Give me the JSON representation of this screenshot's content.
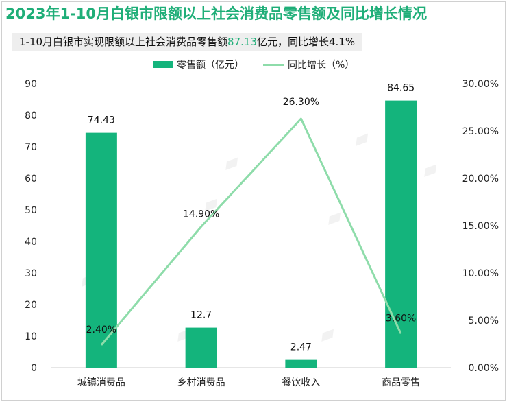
{
  "header": {
    "title": "2023年1-10月白银市限额以上社会消费品零售额及同比增长情况",
    "subtitle_prefix": "1-10月白银市实现限额以上社会消费品零售额",
    "subtitle_value": "87.13",
    "subtitle_suffix": "亿元，同比增长4.1%"
  },
  "legend": {
    "bar_label": "零售额（亿元）",
    "line_label": "同比增长（%）"
  },
  "colors": {
    "bar": "#14b47c",
    "line": "#8edcaa",
    "title": "#1fae78"
  },
  "chart_data": {
    "type": "bar",
    "categories": [
      "城镇消费品",
      "乡村消费品",
      "餐饮收入",
      "商品零售"
    ],
    "series": [
      {
        "name": "零售额（亿元）",
        "type": "bar",
        "axis": "left",
        "values": [
          74.43,
          12.7,
          2.47,
          84.65
        ],
        "labels": [
          "74.43",
          "12.7",
          "2.47",
          "84.65"
        ]
      },
      {
        "name": "同比增长（%）",
        "type": "line",
        "axis": "right",
        "values": [
          2.4,
          14.9,
          26.3,
          3.6
        ],
        "labels": [
          "2.40%",
          "14.90%",
          "26.30%",
          "3.60%"
        ]
      }
    ],
    "y_left": {
      "min": 0,
      "max": 90,
      "ticks": [
        0,
        10,
        20,
        30,
        40,
        50,
        60,
        70,
        80,
        90
      ],
      "tick_labels": [
        "0",
        "10",
        "20",
        "30",
        "40",
        "50",
        "60",
        "70",
        "80",
        "90"
      ]
    },
    "y_right": {
      "min": 0,
      "max": 30,
      "ticks": [
        0,
        5,
        10,
        15,
        20,
        25,
        30
      ],
      "tick_labels": [
        "0.00%",
        "5.00%",
        "10.00%",
        "15.00%",
        "20.00%",
        "25.00%",
        "30.00%"
      ]
    },
    "grid": false,
    "legend_position": "top"
  }
}
